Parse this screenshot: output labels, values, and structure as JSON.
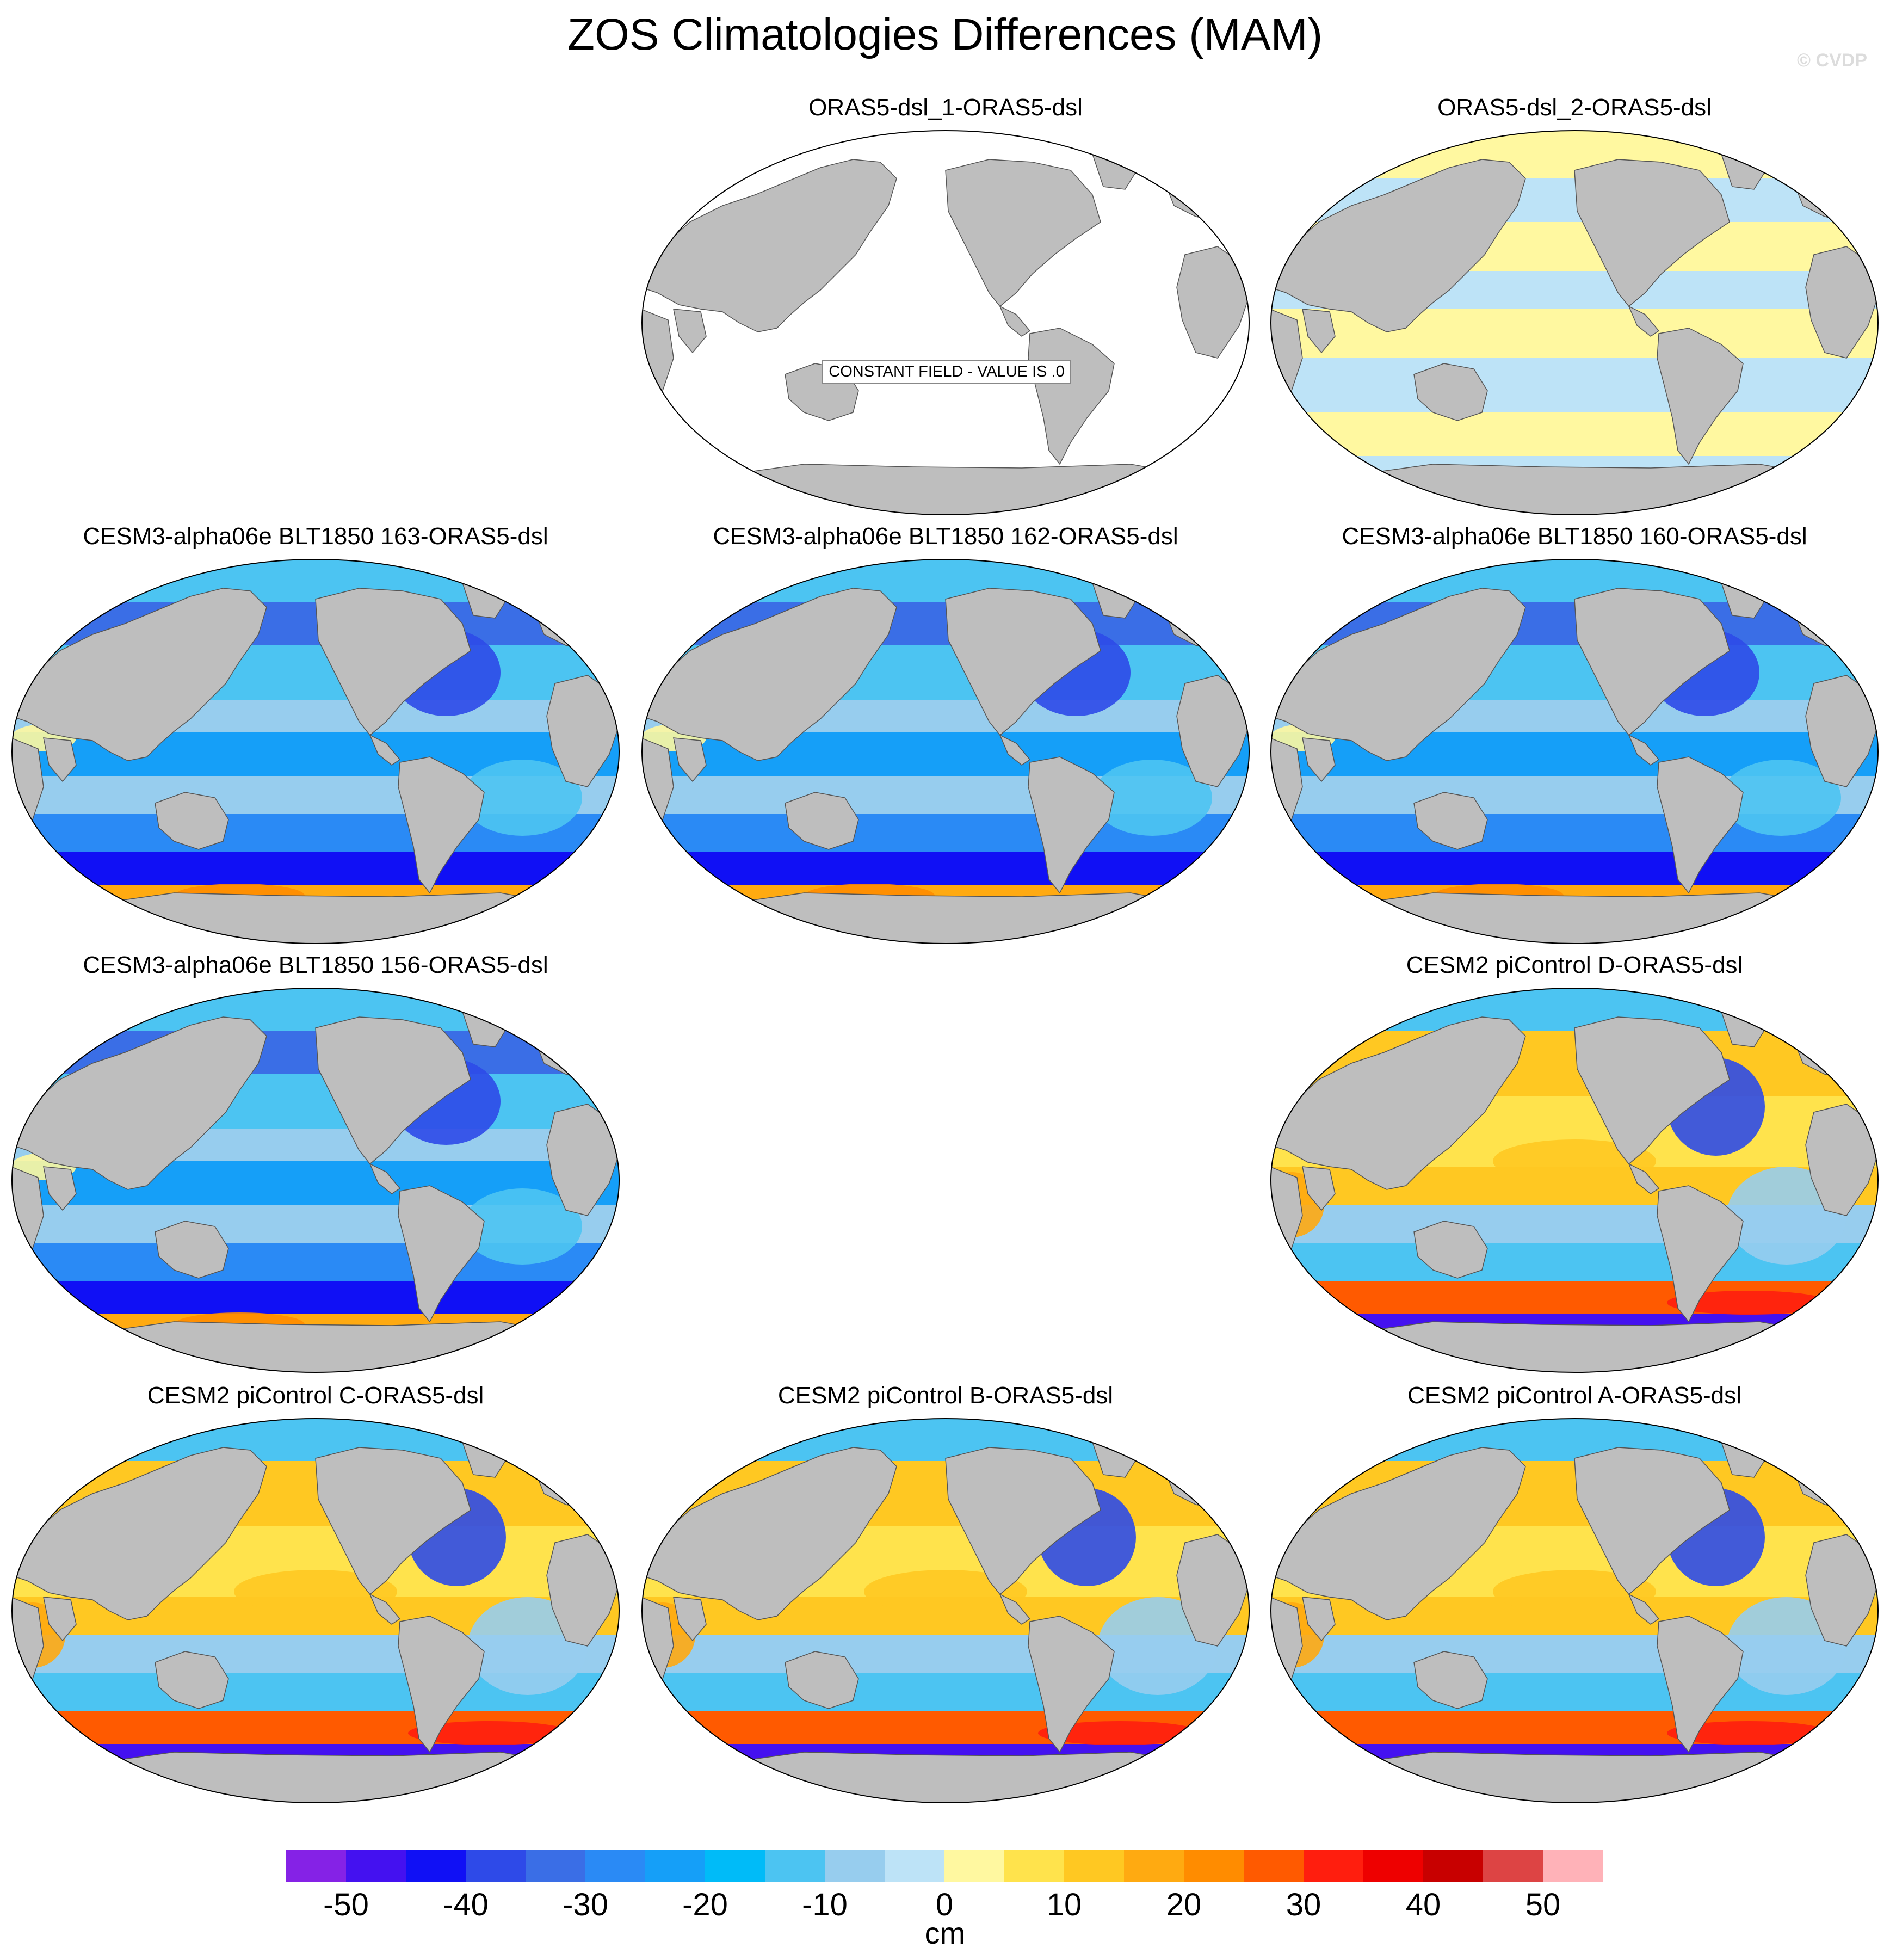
{
  "title": "ZOS Climatologies Differences (MAM)",
  "credit": "© CVDP",
  "constant_field_label": "CONSTANT FIELD - VALUE IS .0",
  "panels": [
    {
      "id": "p1",
      "title": "ORAS5-dsl_1-ORAS5-dsl",
      "scheme": "constant"
    },
    {
      "id": "p2",
      "title": "ORAS5-dsl_2-ORAS5-dsl",
      "scheme": "near-zero"
    },
    {
      "id": "p3",
      "title": "CESM3-alpha06e BLT1850 163-ORAS5-dsl",
      "scheme": "cesm3"
    },
    {
      "id": "p4",
      "title": "CESM3-alpha06e BLT1850 162-ORAS5-dsl",
      "scheme": "cesm3"
    },
    {
      "id": "p5",
      "title": "CESM3-alpha06e BLT1850 160-ORAS5-dsl",
      "scheme": "cesm3"
    },
    {
      "id": "p6",
      "title": "CESM3-alpha06e BLT1850 156-ORAS5-dsl",
      "scheme": "cesm3"
    },
    {
      "id": "p7",
      "title": "CESM2 piControl D-ORAS5-dsl",
      "scheme": "cesm2"
    },
    {
      "id": "p8",
      "title": "CESM2 piControl C-ORAS5-dsl",
      "scheme": "cesm2"
    },
    {
      "id": "p9",
      "title": "CESM2 piControl B-ORAS5-dsl",
      "scheme": "cesm2"
    },
    {
      "id": "p10",
      "title": "CESM2 piControl A-ORAS5-dsl",
      "scheme": "cesm2"
    }
  ],
  "colorbar": {
    "unit": "cm",
    "tick_labels": [
      "-50",
      "-40",
      "-30",
      "-20",
      "-10",
      "0",
      "10",
      "20",
      "30",
      "40",
      "50"
    ],
    "colors": [
      "#8522e6",
      "#4411f0",
      "#1010f5",
      "#2e4ae8",
      "#3a6ee6",
      "#2a8af5",
      "#159ff8",
      "#00bbf8",
      "#4cc4f2",
      "#97cdee",
      "#bde3f7",
      "#fff8a0",
      "#ffe34c",
      "#ffc822",
      "#ffaa11",
      "#ff8c00",
      "#ff5a00",
      "#ff1e0e",
      "#ee0000",
      "#c80000",
      "#dd4444",
      "#ffb2b8"
    ]
  },
  "colors": {
    "land": "#bebebe",
    "ocean_constant": "#ffffff"
  }
}
